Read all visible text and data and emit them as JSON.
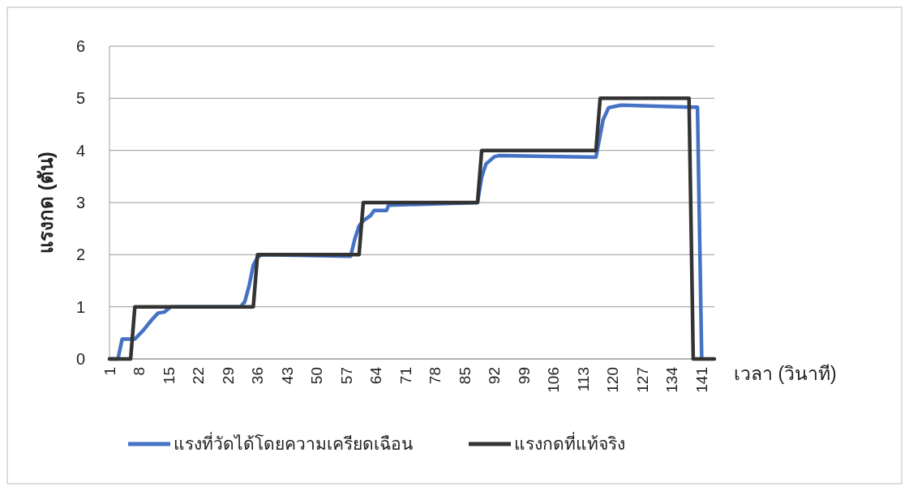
{
  "chart_data": {
    "type": "line",
    "xlabel": "เวลา (วินาที)",
    "ylabel": "แรงกด (ตัน)",
    "xlim": [
      1,
      144
    ],
    "xticks": [
      1,
      8,
      15,
      22,
      29,
      36,
      43,
      50,
      57,
      64,
      71,
      78,
      85,
      92,
      99,
      106,
      113,
      120,
      127,
      134,
      141
    ],
    "ylim": [
      0,
      6
    ],
    "yticks": [
      0,
      1,
      2,
      3,
      4,
      5,
      6
    ],
    "grid": "y",
    "legend": "bottom",
    "marker": "none",
    "line_style": "solid",
    "series": [
      {
        "name": "แรงที่วัดได้โดยความเครียดเฉือน",
        "color": "#4472c4",
        "x": [
          1,
          3,
          4,
          7,
          9,
          11,
          12.5,
          14,
          15.5,
          32,
          33,
          34,
          35,
          36,
          37,
          58,
          59,
          60,
          61,
          62.7,
          63.6,
          66.5,
          67,
          88,
          89,
          90,
          92,
          93,
          116,
          117.7,
          119,
          122,
          138,
          140,
          141
        ],
        "values": [
          0,
          0,
          0.38,
          0.38,
          0.55,
          0.75,
          0.88,
          0.9,
          1,
          1,
          1.1,
          1.4,
          1.8,
          1.95,
          2,
          1.97,
          2.3,
          2.55,
          2.65,
          2.75,
          2.85,
          2.85,
          2.95,
          3,
          3.49,
          3.74,
          3.88,
          3.9,
          3.87,
          4.59,
          4.82,
          4.87,
          4.83,
          4.83,
          0
        ]
      },
      {
        "name": "แรงกดที่แท้จริง",
        "color": "#333333",
        "x": [
          1,
          6,
          7,
          35,
          36,
          60,
          61,
          88,
          89,
          116,
          117,
          138,
          139,
          144
        ],
        "values": [
          0,
          0,
          1,
          1,
          2,
          2,
          3,
          3,
          4,
          4,
          5,
          5,
          0,
          0
        ]
      }
    ]
  }
}
